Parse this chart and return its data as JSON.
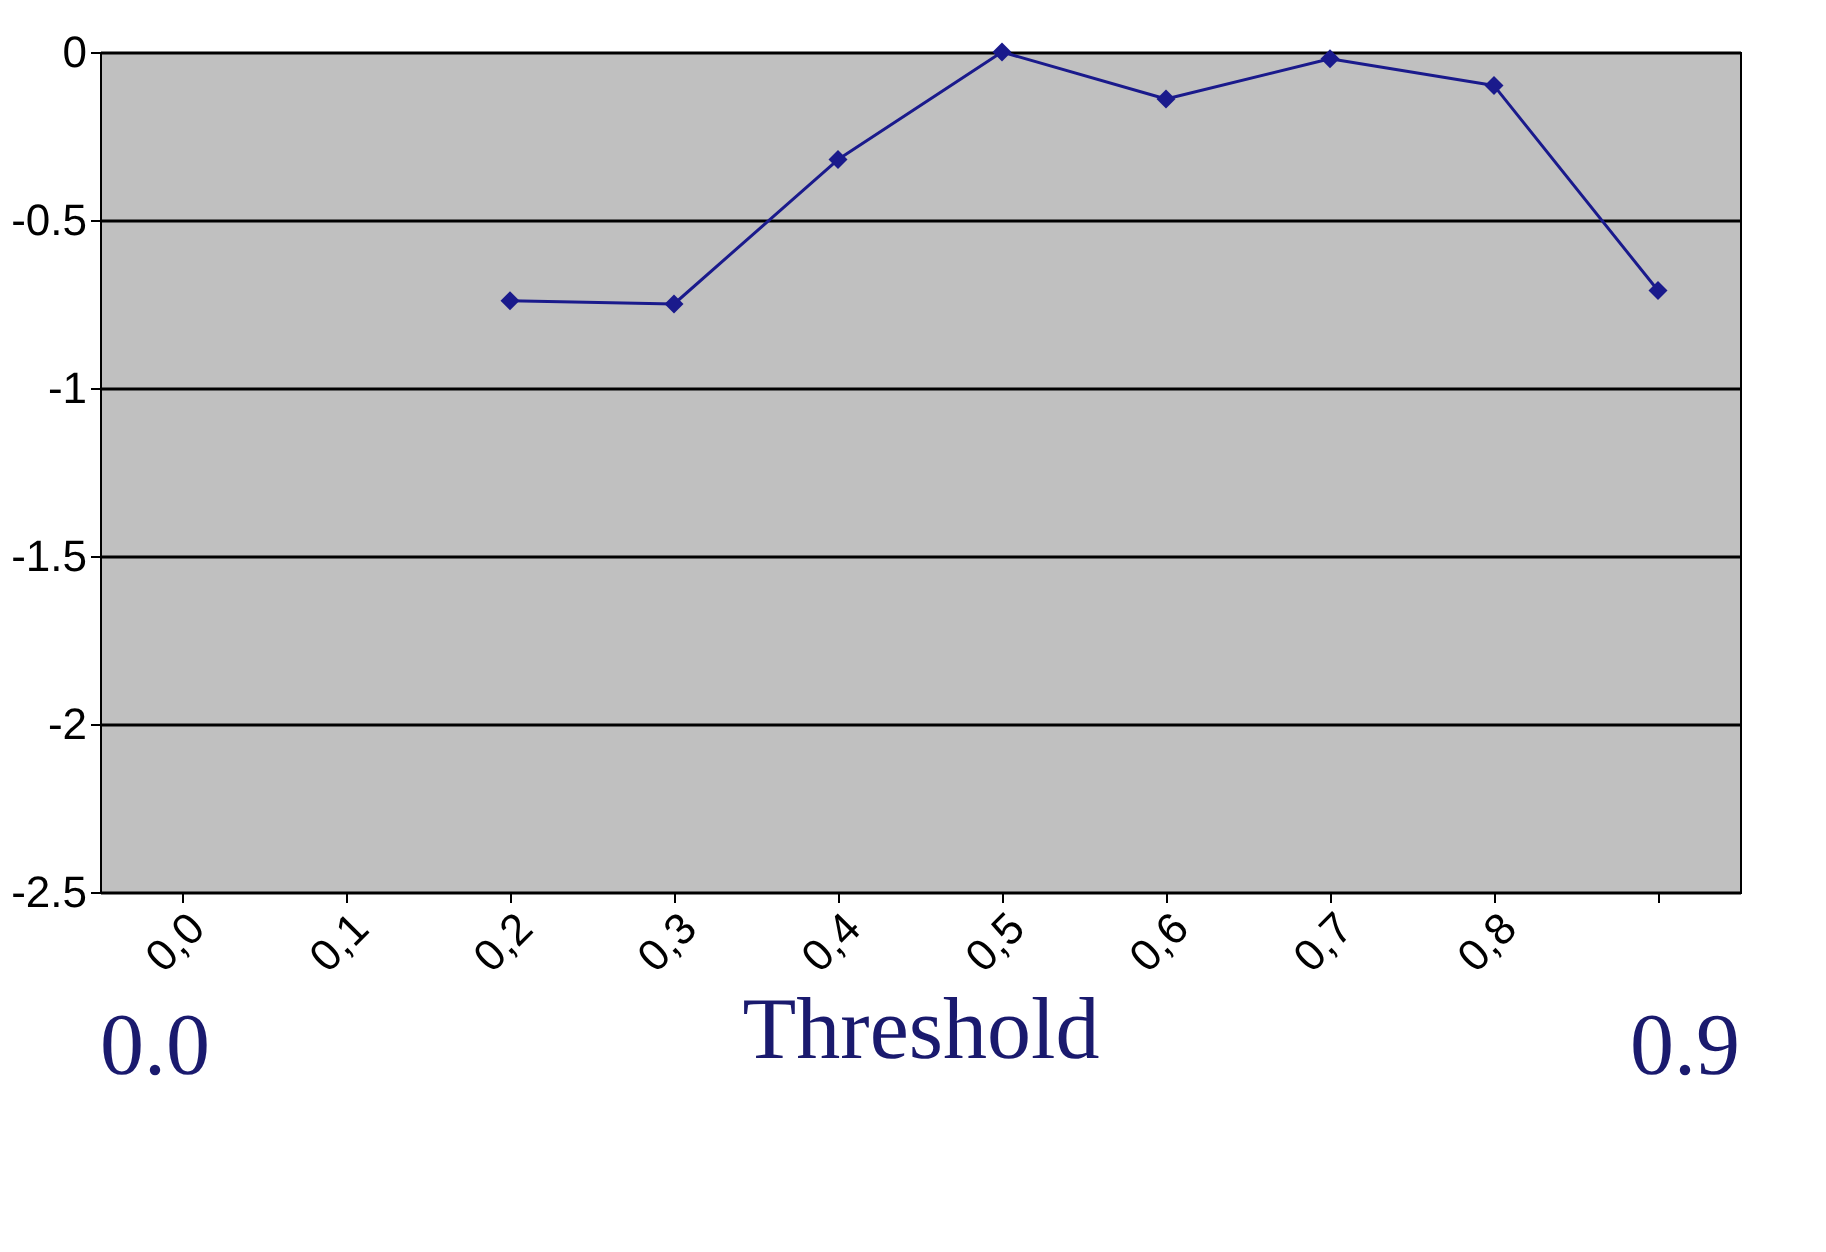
{
  "chart_data": {
    "type": "line",
    "xlabel": "Threshold",
    "categories": [
      "0,0",
      "0,1",
      "0,2",
      "0,3",
      "0,4",
      "0,5",
      "0,6",
      "0,7",
      "0,8",
      null
    ],
    "series": [
      {
        "color": "#1a1a8c",
        "values": [
          null,
          null,
          -0.74,
          -0.75,
          -0.32,
          0.0,
          -0.14,
          -0.02,
          -0.1,
          -0.71
        ]
      }
    ],
    "ylim": [
      -2.5,
      0
    ],
    "yticks": [
      -2.5,
      -2,
      -1.5,
      -1,
      -0.5,
      0
    ],
    "grid": "y",
    "marker": "diamond",
    "line_style": "solid",
    "annotations": [
      "0.0",
      "0.9"
    ]
  }
}
